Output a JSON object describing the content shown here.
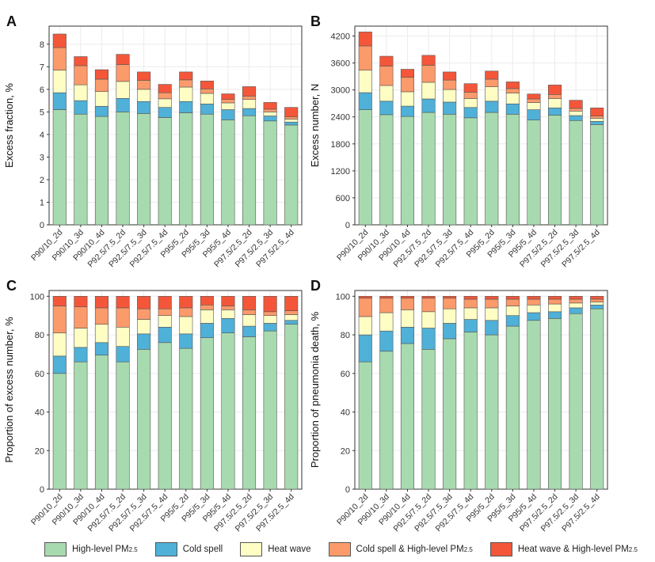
{
  "colors": {
    "High-level PM2.5": "#a8dab0",
    "Cold spell": "#4fb0d8",
    "Heat wave": "#fdfdc4",
    "Cold spell & High-level PM2.5": "#fb9a6a",
    "Heat wave & High-level PM2.5": "#f4563a"
  },
  "legend": [
    {
      "key": "High-level PM2.5",
      "label": "High-level PM",
      "sub": "2.5"
    },
    {
      "key": "Cold spell",
      "label": "Cold spell",
      "sub": ""
    },
    {
      "key": "Heat wave",
      "label": "Heat wave",
      "sub": ""
    },
    {
      "key": "Cold spell & High-level PM2.5",
      "label": "Cold spell & High-level PM",
      "sub": "2.5"
    },
    {
      "key": "Heat wave & High-level PM2.5",
      "label": "Heat wave & High-level PM",
      "sub": "2.5"
    }
  ],
  "chart_data": [
    {
      "panel": "A",
      "type": "bar",
      "stacked": true,
      "ylabel": "Excess fraction, %",
      "ylim": [
        0,
        8.8
      ],
      "yticks": [
        0,
        1,
        2,
        3,
        4,
        5,
        6,
        7,
        8
      ],
      "categories": [
        "P90/10_2d",
        "P90/10_3d",
        "P90/10_4d",
        "P92.5/7.5_2d",
        "P92.5/7.5_3d",
        "P92.5/7.5_4d",
        "P95/5_2d",
        "P95/5_3d",
        "P95/5_4d",
        "P97.5/2.5_2d",
        "P97.5/2.5_3d",
        "P97.5/2.5_4d"
      ],
      "series": [
        {
          "name": "High-level PM2.5",
          "values": [
            5.1,
            4.9,
            4.8,
            5.0,
            4.93,
            4.75,
            4.96,
            4.9,
            4.65,
            4.83,
            4.6,
            4.42
          ]
        },
        {
          "name": "Cold spell",
          "values": [
            0.75,
            0.6,
            0.45,
            0.6,
            0.53,
            0.45,
            0.5,
            0.45,
            0.45,
            0.32,
            0.22,
            0.13
          ]
        },
        {
          "name": "Heat wave",
          "values": [
            1.0,
            0.7,
            0.65,
            0.75,
            0.54,
            0.38,
            0.64,
            0.47,
            0.3,
            0.4,
            0.18,
            0.13
          ]
        },
        {
          "name": "Cold spell & High-level PM2.5",
          "values": [
            1.0,
            0.85,
            0.55,
            0.75,
            0.4,
            0.27,
            0.32,
            0.2,
            0.15,
            0.15,
            0.12,
            0.1
          ]
        },
        {
          "name": "Heat wave & High-level PM2.5",
          "values": [
            0.6,
            0.4,
            0.42,
            0.45,
            0.37,
            0.37,
            0.35,
            0.35,
            0.25,
            0.42,
            0.3,
            0.42
          ]
        }
      ]
    },
    {
      "panel": "B",
      "type": "bar",
      "stacked": true,
      "ylabel": "Excess number, N",
      "ylim": [
        0,
        4420
      ],
      "yticks": [
        0,
        600,
        1200,
        1800,
        2400,
        3000,
        3600,
        4200
      ],
      "categories": [
        "P90/10_2d",
        "P90/10_3d",
        "P90/10_4d",
        "P92.5/7.5_2d",
        "P92.5/7.5_3d",
        "P92.5/7.5_4d",
        "P95/5_2d",
        "P95/5_3d",
        "P95/5_4d",
        "P97.5/2.5_2d",
        "P97.5/2.5_3d",
        "P97.5/2.5_4d"
      ],
      "series": [
        {
          "name": "High-level PM2.5",
          "values": [
            2560,
            2450,
            2410,
            2500,
            2460,
            2380,
            2500,
            2460,
            2330,
            2440,
            2320,
            2230
          ]
        },
        {
          "name": "Cold spell",
          "values": [
            380,
            300,
            230,
            300,
            270,
            230,
            250,
            230,
            230,
            160,
            110,
            70
          ]
        },
        {
          "name": "Heat wave",
          "values": [
            500,
            350,
            320,
            370,
            280,
            200,
            320,
            240,
            160,
            210,
            100,
            70
          ]
        },
        {
          "name": "Cold spell & High-level PM2.5",
          "values": [
            540,
            430,
            320,
            380,
            210,
            140,
            170,
            100,
            80,
            90,
            60,
            50
          ]
        },
        {
          "name": "Heat wave & High-level PM2.5",
          "values": [
            310,
            220,
            180,
            220,
            180,
            190,
            180,
            150,
            110,
            210,
            180,
            180
          ]
        }
      ]
    },
    {
      "panel": "C",
      "type": "bar",
      "stacked": true,
      "ylabel": "Proportion of excess number, %",
      "ylim": [
        0,
        103
      ],
      "yticks": [
        0,
        20,
        40,
        60,
        80,
        100
      ],
      "categories": [
        "P90/10_2d",
        "P90/10_3d",
        "P90/10_4d",
        "P92.5/7.5_2d",
        "P92.5/7.5_3d",
        "P92.5/7.5_4d",
        "P95/5_2d",
        "P95/5_3d",
        "P95/5_4d",
        "P97.5/2.5_2d",
        "P97.5/2.5_3d",
        "P97.5/2.5_4d"
      ],
      "series": [
        {
          "name": "High-level PM2.5",
          "values": [
            60,
            66,
            69.5,
            66,
            72.5,
            76,
            73,
            78.5,
            81,
            79,
            82,
            85.5
          ]
        },
        {
          "name": "Cold spell",
          "values": [
            9,
            7.5,
            6.5,
            8,
            8,
            8,
            7.5,
            7.5,
            7.5,
            5.5,
            4,
            2
          ]
        },
        {
          "name": "Heat wave",
          "values": [
            12,
            10,
            9.5,
            10,
            7.5,
            6,
            9,
            7,
            4.5,
            6,
            4,
            3
          ]
        },
        {
          "name": "Cold spell & High-level PM2.5",
          "values": [
            14,
            11,
            8.5,
            10,
            5.5,
            3.5,
            4.5,
            2.5,
            2,
            2.5,
            2,
            2
          ]
        },
        {
          "name": "Heat wave & High-level PM2.5",
          "values": [
            5,
            5.5,
            6,
            6,
            6.5,
            6.5,
            6,
            4.5,
            5,
            7,
            8,
            7.5
          ]
        }
      ]
    },
    {
      "panel": "D",
      "type": "bar",
      "stacked": true,
      "ylabel": "Proportion of pneumonia death, %",
      "ylim": [
        0,
        103
      ],
      "yticks": [
        0,
        20,
        40,
        60,
        80,
        100
      ],
      "categories": [
        "P90/10_2d",
        "P90/10_3d",
        "P90/10_4d",
        "P92.5/7.5_2d",
        "P92.5/7.5_3d",
        "P92.5/7.5_4d",
        "P95/5_2d",
        "P95/5_3d",
        "P95/5_4d",
        "P97.5/2.5_2d",
        "P97.5/2.5_3d",
        "P97.5/2.5_4d"
      ],
      "series": [
        {
          "name": "High-level PM2.5",
          "values": [
            66,
            71.5,
            75.5,
            72.5,
            78,
            81.5,
            80,
            84.5,
            87.5,
            88.5,
            91,
            93.5
          ]
        },
        {
          "name": "Cold spell",
          "values": [
            14,
            10.5,
            8.5,
            11,
            8,
            6.5,
            7.5,
            5.5,
            4,
            3.5,
            3,
            2
          ]
        },
        {
          "name": "Heat wave",
          "values": [
            9.5,
            9.5,
            9,
            8.5,
            7.5,
            6,
            6.5,
            5,
            4,
            4,
            2.5,
            1.5
          ]
        },
        {
          "name": "Cold spell & High-level PM2.5",
          "values": [
            9.5,
            7.5,
            6,
            7,
            5.5,
            4.5,
            4.5,
            3.5,
            3,
            2.5,
            2,
            1.5
          ]
        },
        {
          "name": "Heat wave & High-level PM2.5",
          "values": [
            1,
            1,
            1,
            1,
            1,
            1.5,
            1.5,
            1.5,
            1.5,
            1.5,
            1.5,
            1.5
          ]
        }
      ]
    }
  ]
}
